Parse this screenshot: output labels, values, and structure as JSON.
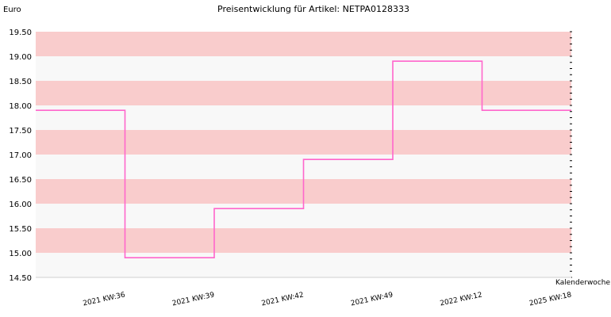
{
  "chart_data": {
    "type": "line",
    "step": true,
    "title": "Preisentwicklung für Artikel: NETPA0128333",
    "ylabel": "Euro",
    "xlabel": "Kalenderwoche",
    "ylim": [
      14.5,
      19.5
    ],
    "yticks": [
      "14.50",
      "15.00",
      "15.50",
      "16.00",
      "16.50",
      "17.00",
      "17.50",
      "18.00",
      "18.50",
      "19.00",
      "19.50"
    ],
    "categories": [
      "2021 KW:36",
      "2021 KW:39",
      "2021 KW:42",
      "2021 KW:49",
      "2022 KW:12",
      "2025 KW:18"
    ],
    "series": [
      {
        "values": [
          17.9,
          14.9,
          15.9,
          16.9,
          18.9,
          17.9
        ],
        "color": "#ff66cc"
      }
    ],
    "band_colors": [
      "#f8f8f8",
      "#f9cccc"
    ],
    "grid": false
  }
}
